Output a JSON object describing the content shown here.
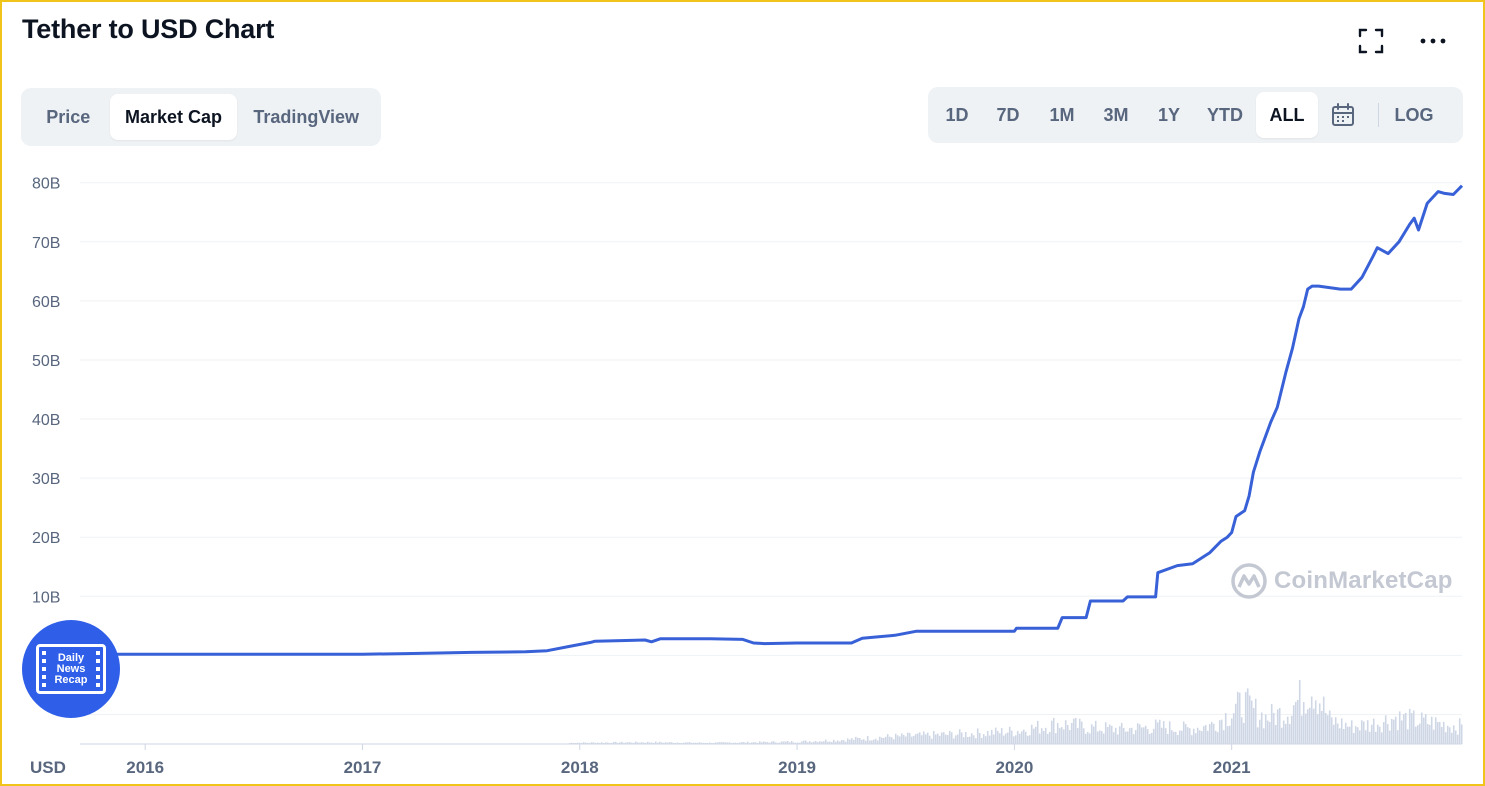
{
  "header": {
    "title": "Tether to USD Chart",
    "fullscreen_icon": "fullscreen-icon",
    "more_icon": "more-horizontal-icon"
  },
  "tabs": [
    {
      "label": "Price",
      "active": false
    },
    {
      "label": "Market Cap",
      "active": true
    },
    {
      "label": "TradingView",
      "active": false
    }
  ],
  "ranges": [
    {
      "label": "1D",
      "active": false
    },
    {
      "label": "7D",
      "active": false
    },
    {
      "label": "1M",
      "active": false
    },
    {
      "label": "3M",
      "active": false
    },
    {
      "label": "1Y",
      "active": false
    },
    {
      "label": "YTD",
      "active": false
    },
    {
      "label": "ALL",
      "active": true
    }
  ],
  "calendar_icon": "calendar-icon",
  "log_label": "LOG",
  "watermark": "CoinMarketCap",
  "logo_badge": {
    "text": "Daily News Recap",
    "icon": "film-icon"
  },
  "colors": {
    "line": "#3861d8",
    "volume": "#cfd6e4",
    "grid": "#eff2f5",
    "text": "#58667e",
    "frame": "#f0c419"
  },
  "chart_data": {
    "type": "line",
    "title": "Tether to USD Chart",
    "currency_label": "USD",
    "y_ticks": [
      "10B",
      "20B",
      "30B",
      "40B",
      "50B",
      "60B",
      "70B",
      "80B"
    ],
    "x_ticks": [
      "2016",
      "2017",
      "2018",
      "2019",
      "2020",
      "2021"
    ],
    "ylim": [
      -15,
      83
    ],
    "xlim": [
      2015.7,
      2022.06
    ],
    "grid": true,
    "series": [
      {
        "x": [
          2015.7,
          2016.0,
          2016.5,
          2017.0,
          2017.2,
          2017.5,
          2017.75,
          2017.85,
          2017.95,
          2018.05,
          2018.07,
          2018.3,
          2018.33,
          2018.37,
          2018.6,
          2018.75,
          2018.8,
          2018.85,
          2019.0,
          2019.25,
          2019.3,
          2019.45,
          2019.55,
          2019.7,
          2019.85,
          2020.0,
          2020.01,
          2020.15,
          2020.2,
          2020.22,
          2020.33,
          2020.35,
          2020.5,
          2020.52,
          2020.62,
          2020.65,
          2020.66,
          2020.75,
          2020.82,
          2020.9,
          2020.95,
          2020.98,
          2021.0,
          2021.02,
          2021.06,
          2021.08,
          2021.1,
          2021.13,
          2021.15,
          2021.18,
          2021.21,
          2021.25,
          2021.28,
          2021.31,
          2021.33,
          2021.35,
          2021.37,
          2021.4,
          2021.5,
          2021.55,
          2021.6,
          2021.65,
          2021.67,
          2021.72,
          2021.77,
          2021.82,
          2021.84,
          2021.86,
          2021.9,
          2021.95,
          2021.98,
          2022.02,
          2022.06
        ],
        "y": [
          0.2,
          0.2,
          0.2,
          0.2,
          0.3,
          0.5,
          0.6,
          0.8,
          1.5,
          2.2,
          2.4,
          2.6,
          2.3,
          2.8,
          2.8,
          2.7,
          2.1,
          2.0,
          2.1,
          2.1,
          2.9,
          3.4,
          4.1,
          4.1,
          4.1,
          4.1,
          4.6,
          4.6,
          4.6,
          6.4,
          6.4,
          9.2,
          9.2,
          9.9,
          9.9,
          9.9,
          14.0,
          15.2,
          15.5,
          17.4,
          19.3,
          20.0,
          20.8,
          23.5,
          24.5,
          27.0,
          31.0,
          34.5,
          36.5,
          39.5,
          42.0,
          48.0,
          52.0,
          57.0,
          59.0,
          62.0,
          62.5,
          62.5,
          62.0,
          62.0,
          64.0,
          67.5,
          69.0,
          68.0,
          70.0,
          73.0,
          74.0,
          72.0,
          76.5,
          78.5,
          78.2,
          78.0,
          79.5
        ]
      }
    ],
    "volume": [
      {
        "x": 2017.95,
        "v": 0.02
      },
      {
        "x": 2018.3,
        "v": 0.03
      },
      {
        "x": 2018.6,
        "v": 0.02
      },
      {
        "x": 2019.0,
        "v": 0.04
      },
      {
        "x": 2019.2,
        "v": 0.07
      },
      {
        "x": 2019.4,
        "v": 0.12
      },
      {
        "x": 2019.6,
        "v": 0.15
      },
      {
        "x": 2019.8,
        "v": 0.18
      },
      {
        "x": 2020.0,
        "v": 0.22
      },
      {
        "x": 2020.2,
        "v": 0.35
      },
      {
        "x": 2020.35,
        "v": 0.28
      },
      {
        "x": 2020.5,
        "v": 0.25
      },
      {
        "x": 2020.65,
        "v": 0.3
      },
      {
        "x": 2020.8,
        "v": 0.26
      },
      {
        "x": 2020.9,
        "v": 0.32
      },
      {
        "x": 2021.0,
        "v": 0.55
      },
      {
        "x": 2021.05,
        "v": 0.7
      },
      {
        "x": 2021.15,
        "v": 0.45
      },
      {
        "x": 2021.25,
        "v": 0.55
      },
      {
        "x": 2021.33,
        "v": 0.85
      },
      {
        "x": 2021.37,
        "v": 1.0
      },
      {
        "x": 2021.45,
        "v": 0.4
      },
      {
        "x": 2021.55,
        "v": 0.3
      },
      {
        "x": 2021.65,
        "v": 0.35
      },
      {
        "x": 2021.75,
        "v": 0.45
      },
      {
        "x": 2021.85,
        "v": 0.4
      },
      {
        "x": 2021.95,
        "v": 0.35
      },
      {
        "x": 2022.05,
        "v": 0.3
      }
    ]
  }
}
